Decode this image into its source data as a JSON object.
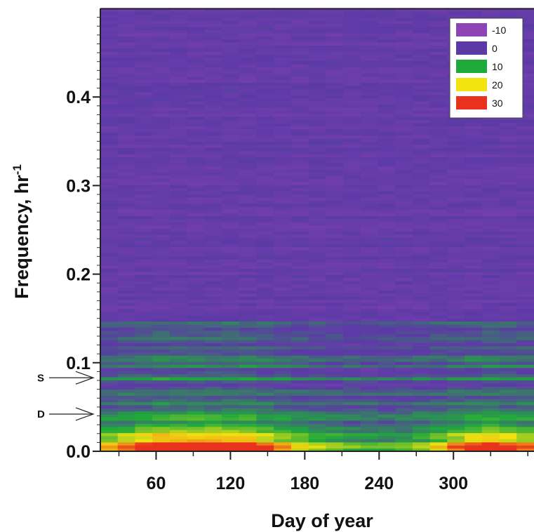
{
  "chart_data": {
    "type": "heatmap",
    "title": "",
    "xlabel": "Day of year",
    "ylabel": "Frequency, hr",
    "ylabel_superscript": "-1",
    "xlim": [
      15,
      365
    ],
    "ylim": [
      0,
      0.5
    ],
    "x_ticks": [
      60,
      120,
      180,
      240,
      300
    ],
    "y_ticks": [
      0.0,
      0.1,
      0.2,
      0.3,
      0.4
    ],
    "y_tick_labels": [
      "0.0",
      "0.1",
      "0.2",
      "0.3",
      "0.4"
    ],
    "legend": {
      "placement": "top-right",
      "entries": [
        {
          "label": "-10",
          "color": "#8e44b5"
        },
        {
          "label": "0",
          "color": "#5b3aa6"
        },
        {
          "label": "10",
          "color": "#1faa3b"
        },
        {
          "label": "20",
          "color": "#f2e30f"
        },
        {
          "label": "30",
          "color": "#e8321e"
        }
      ]
    },
    "colorscale": [
      {
        "value": -10,
        "color": "#8e44b5"
      },
      {
        "value": 0,
        "color": "#5b3aa6"
      },
      {
        "value": 10,
        "color": "#1faa3b"
      },
      {
        "value": 20,
        "color": "#f2e30f"
      },
      {
        "value": 30,
        "color": "#e8321e"
      }
    ],
    "annotations": [
      {
        "label": "S",
        "frequency": 0.083
      },
      {
        "label": "D",
        "frequency": 0.042
      }
    ]
  }
}
